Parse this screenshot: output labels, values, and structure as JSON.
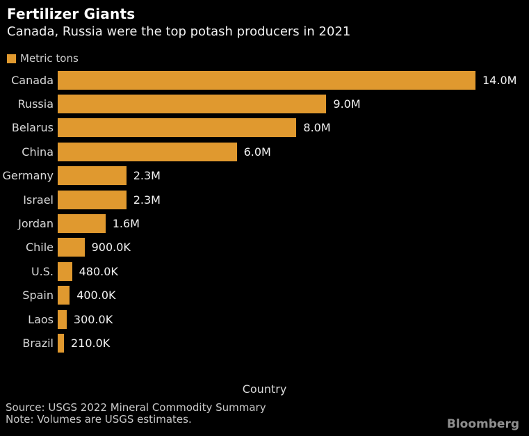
{
  "header": {
    "title": "Fertilizer Giants",
    "subtitle": "Canada, Russia were the top potash producers in 2021"
  },
  "legend": {
    "label": "Metric tons",
    "swatch_color": "#E0992F"
  },
  "chart_data": {
    "type": "bar",
    "orientation": "horizontal",
    "unit": "Metric tons",
    "categories": [
      "Canada",
      "Russia",
      "Belarus",
      "China",
      "Germany",
      "Israel",
      "Jordan",
      "Chile",
      "U.S.",
      "Spain",
      "Laos",
      "Brazil"
    ],
    "values": [
      14000000,
      9000000,
      8000000,
      6000000,
      2300000,
      2300000,
      1600000,
      900000,
      480000,
      400000,
      300000,
      210000
    ],
    "value_labels": [
      "14.0M",
      "9.0M",
      "8.0M",
      "6.0M",
      "2.3M",
      "2.3M",
      "1.6M",
      "900.0K",
      "480.0K",
      "400.0K",
      "300.0K",
      "210.0K"
    ],
    "xlabel": "Country",
    "xlim": [
      0,
      14000000
    ],
    "bar_color": "#E0992F",
    "grid": false,
    "legend_position": "top-left",
    "background_color": "#000000"
  },
  "axis": {
    "label": "Country"
  },
  "footer": {
    "source": "Source: USGS 2022 Mineral Commodity Summary",
    "note": "Note: Volumes are USGS estimates.",
    "brand": "Bloomberg"
  }
}
